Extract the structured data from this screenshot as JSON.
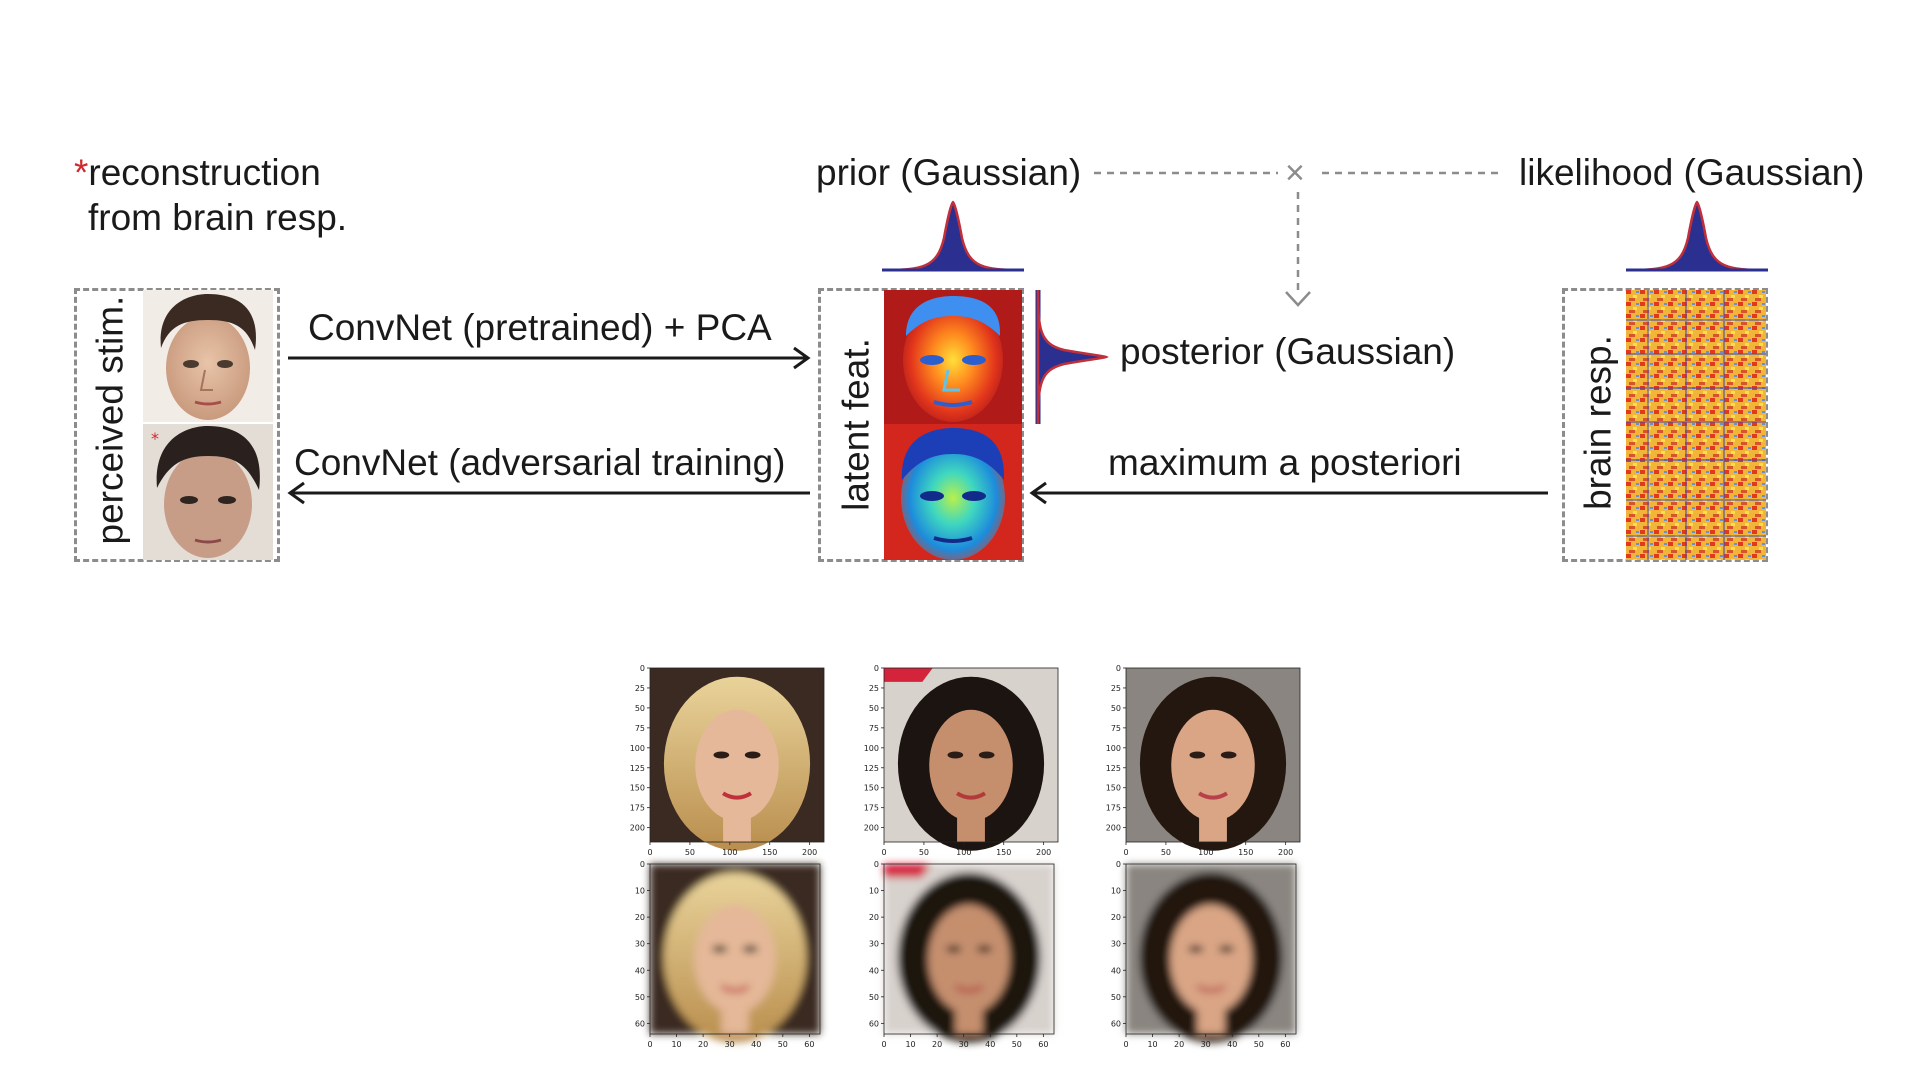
{
  "diagram": {
    "reconstruction_note": {
      "asterisk": "*",
      "line1": "reconstruction",
      "line2": "from brain resp."
    },
    "prior_label": "prior (Gaussian)",
    "likelihood_label": "likelihood (Gaussian)",
    "multiply_symbol": "×",
    "perceived_stim_label": "perceived stim.",
    "latent_feat_label": "latent feat.",
    "brain_resp_label": "brain resp.",
    "forward_arrow_label": "ConvNet (pretrained) + PCA",
    "backward_arrow_label": "ConvNet (adversarial training)",
    "posterior_label": "posterior (Gaussian)",
    "map_arrow_label": "maximum a posteriori",
    "colors": {
      "gaussian_fill": "#2b2f8f",
      "gaussian_edge": "#c0303a",
      "dash": "#8c8c8c",
      "arrow": "#1a1a1a",
      "asterisk": "#d0282d"
    }
  },
  "reconstruction_grid": {
    "originals": [
      {
        "name": "blonde-woman",
        "x_ticks": [
          "0",
          "50",
          "100",
          "150",
          "200"
        ],
        "y_ticks": [
          "0",
          "25",
          "50",
          "75",
          "100",
          "125",
          "150",
          "175",
          "200"
        ]
      },
      {
        "name": "smiling-woman",
        "x_ticks": [
          "0",
          "50",
          "100",
          "150",
          "200"
        ],
        "y_ticks": [
          "0",
          "25",
          "50",
          "75",
          "100",
          "125",
          "150",
          "175",
          "200"
        ]
      },
      {
        "name": "dark-hair-woman",
        "x_ticks": [
          "0",
          "50",
          "100",
          "150",
          "200"
        ],
        "y_ticks": [
          "0",
          "25",
          "50",
          "75",
          "100",
          "125",
          "150",
          "175",
          "200"
        ]
      }
    ],
    "reconstructions": [
      {
        "name": "blonde-woman-recon",
        "x_ticks": [
          "0",
          "10",
          "20",
          "30",
          "40",
          "50",
          "60"
        ],
        "y_ticks": [
          "0",
          "10",
          "20",
          "30",
          "40",
          "50",
          "60"
        ]
      },
      {
        "name": "smiling-woman-recon",
        "x_ticks": [
          "0",
          "10",
          "20",
          "30",
          "40",
          "50",
          "60"
        ],
        "y_ticks": [
          "0",
          "10",
          "20",
          "30",
          "40",
          "50",
          "60"
        ]
      },
      {
        "name": "dark-hair-woman-recon",
        "x_ticks": [
          "0",
          "10",
          "20",
          "30",
          "40",
          "50",
          "60"
        ],
        "y_ticks": [
          "0",
          "10",
          "20",
          "30",
          "40",
          "50",
          "60"
        ]
      }
    ]
  }
}
